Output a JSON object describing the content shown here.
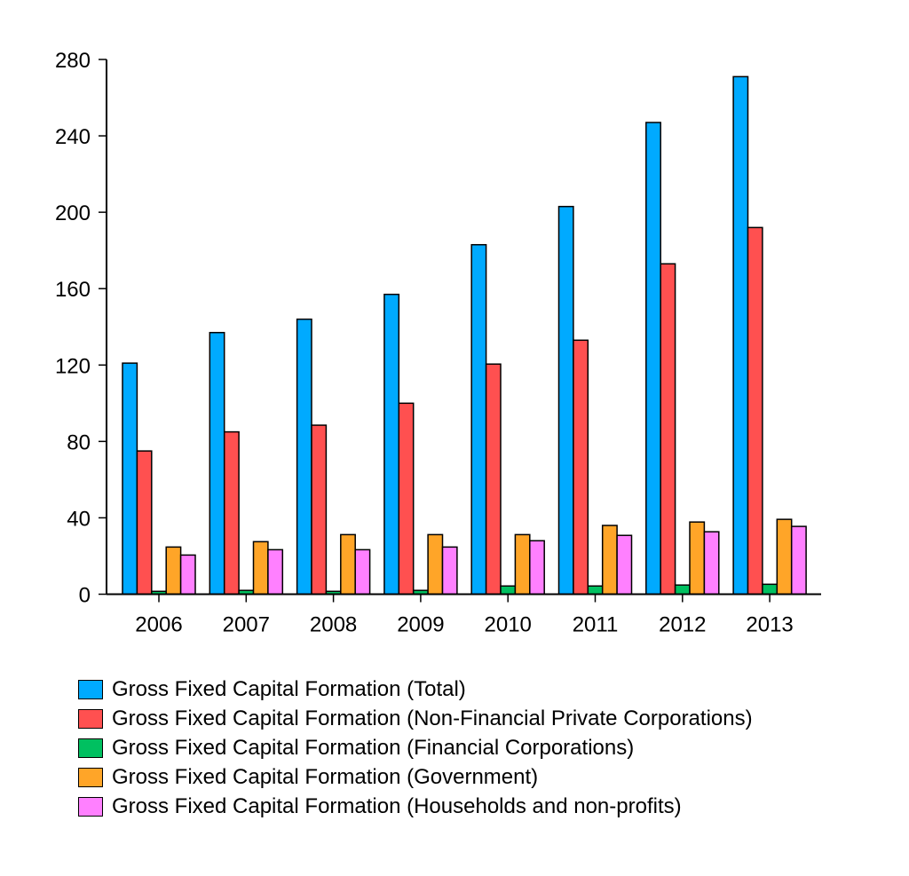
{
  "chart_data": {
    "type": "bar",
    "title": "",
    "xlabel": "",
    "ylabel": "",
    "ylim": [
      0,
      280
    ],
    "yticks": [
      0,
      40,
      80,
      120,
      160,
      200,
      240,
      280
    ],
    "ytick_labels": [
      "0",
      "40",
      "80",
      "120",
      "160",
      "200",
      "240",
      "280"
    ],
    "categories": [
      "2006",
      "2007",
      "2008",
      "2009",
      "2010",
      "2011",
      "2012",
      "2013"
    ],
    "legend_position": "bottom",
    "grid": false,
    "series": [
      {
        "name": "Gross Fixed Capital Formation (Total)",
        "color": "#00aaff",
        "values": [
          121,
          137,
          144,
          157,
          183,
          203,
          247,
          271
        ]
      },
      {
        "name": "Gross Fixed Capital Formation (Non-Financial Private Corporations)",
        "color": "#ff5050",
        "values": [
          75,
          85,
          88.5,
          100,
          120.5,
          133,
          173,
          192
        ]
      },
      {
        "name": "Gross Fixed Capital Formation (Financial Corporations)",
        "color": "#00c060",
        "values": [
          1.5,
          2,
          1.5,
          2,
          4.3,
          4.3,
          4.8,
          5.2
        ]
      },
      {
        "name": "Gross Fixed Capital Formation (Government)",
        "color": "#ffa528",
        "values": [
          24.7,
          27.5,
          31.2,
          31.2,
          31.2,
          36,
          37.8,
          39.2
        ]
      },
      {
        "name": "Gross Fixed Capital Formation (Households and non-profits)",
        "color": "#ff80ff",
        "values": [
          20.5,
          23.3,
          23.3,
          24.7,
          28,
          30.8,
          32.7,
          35.5
        ]
      }
    ]
  }
}
